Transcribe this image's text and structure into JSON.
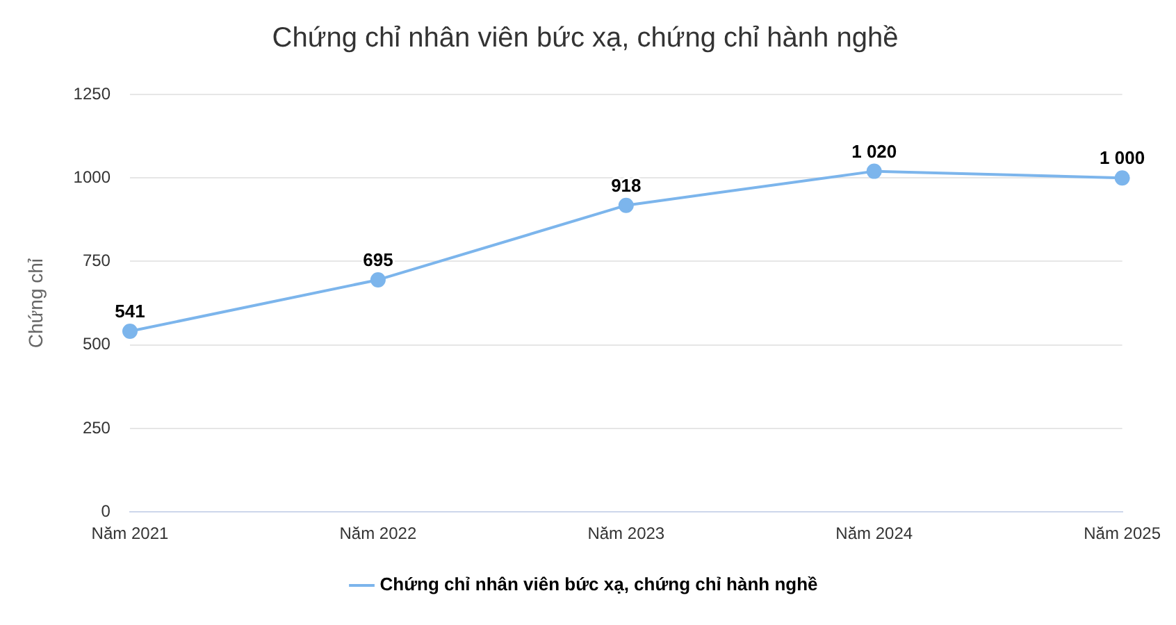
{
  "chart_data": {
    "type": "line",
    "title": "Chứng chỉ nhân viên bức xạ, chứng chỉ hành nghề",
    "ylabel": "Chứng chỉ",
    "categories": [
      "Năm 2021",
      "Năm 2022",
      "Năm 2023",
      "Năm 2024",
      "Năm 2025"
    ],
    "series": [
      {
        "name": "Chứng chỉ nhân viên bức xạ, chứng chỉ hành nghề",
        "color": "#7cb5ec",
        "values": [
          541,
          695,
          918,
          1020,
          1000
        ],
        "value_labels": [
          "541",
          "695",
          "918",
          "1 020",
          "1 000"
        ]
      }
    ],
    "ylim": [
      0,
      1250
    ],
    "yticks": [
      0,
      250,
      500,
      750,
      1000,
      1250
    ],
    "grid": "y",
    "legend": "bottom",
    "marker": "circle"
  }
}
